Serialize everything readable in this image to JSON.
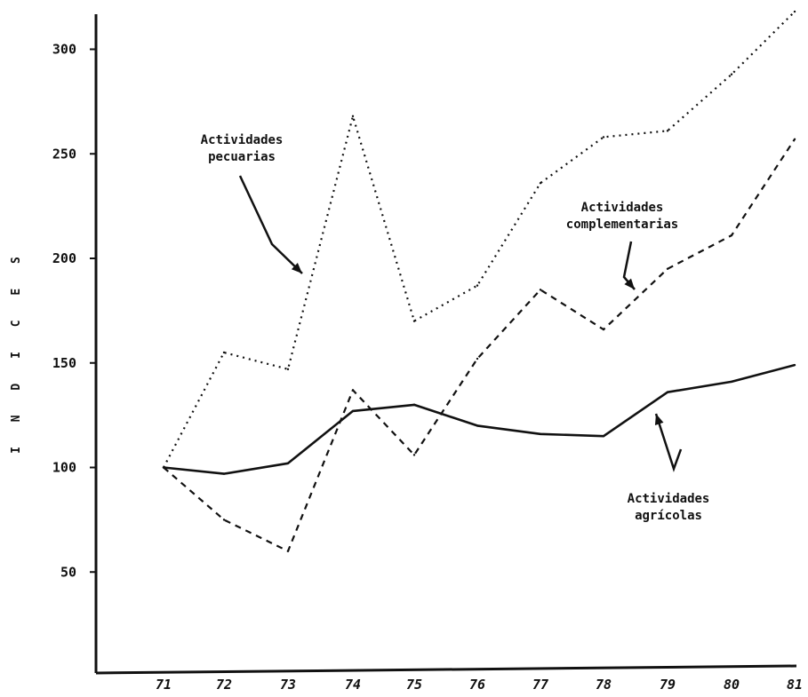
{
  "chart_data": {
    "type": "line",
    "title": "",
    "xlabel": "",
    "ylabel": "I N D I C E S",
    "x": [
      "71",
      "72",
      "73",
      "74",
      "75",
      "76",
      "77",
      "78",
      "79",
      "80",
      "81"
    ],
    "y_ticks": [
      "50",
      "100",
      "150",
      "200",
      "250",
      "300"
    ],
    "ylim": [
      0,
      320
    ],
    "grid": false,
    "series": [
      {
        "name": "Actividades pecuarias",
        "style": "dotted",
        "values": [
          100,
          155,
          147,
          268,
          170,
          187,
          236,
          258,
          261,
          288,
          318
        ]
      },
      {
        "name": "Actividades complementarias",
        "style": "dashed",
        "values": [
          100,
          75,
          60,
          137,
          106,
          152,
          185,
          166,
          195,
          211,
          257
        ]
      },
      {
        "name": "Actividades agrícolas",
        "style": "solid",
        "values": [
          100,
          97,
          102,
          127,
          130,
          120,
          116,
          115,
          136,
          141,
          149
        ]
      }
    ],
    "annotations": [
      {
        "series": 0,
        "lines": [
          "Actividades",
          "pecuarias"
        ]
      },
      {
        "series": 1,
        "lines": [
          "Actividades",
          "complementarias"
        ]
      },
      {
        "series": 2,
        "lines": [
          "Actividades",
          "agrícolas"
        ]
      }
    ],
    "colors": {
      "ink": "#111111",
      "background": "#ffffff"
    }
  }
}
